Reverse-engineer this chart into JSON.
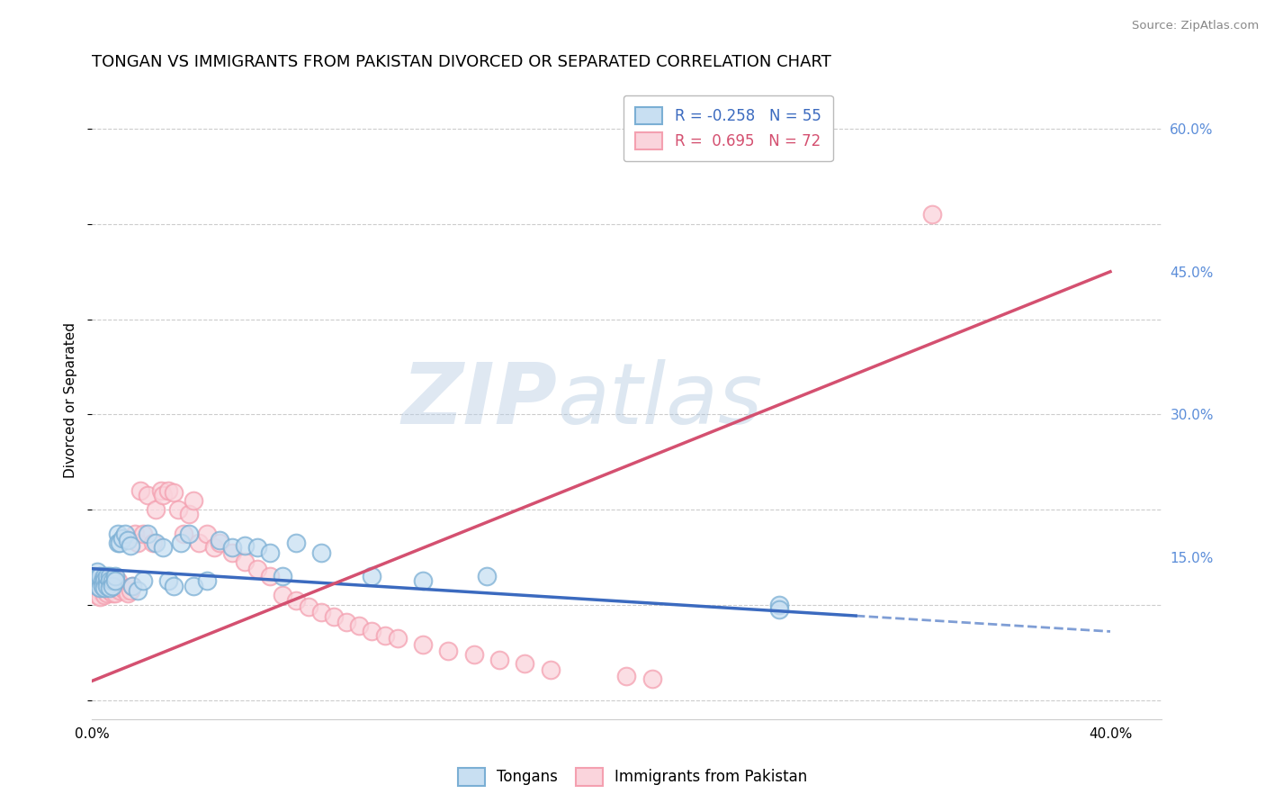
{
  "title": "TONGAN VS IMMIGRANTS FROM PAKISTAN DIVORCED OR SEPARATED CORRELATION CHART",
  "source": "Source: ZipAtlas.com",
  "ylabel": "Divorced or Separated",
  "xlim": [
    0.0,
    0.42
  ],
  "ylim": [
    -0.02,
    0.65
  ],
  "ytick_right": [
    0.15,
    0.3,
    0.45,
    0.6
  ],
  "ytick_right_labels": [
    "15.0%",
    "30.0%",
    "45.0%",
    "60.0%"
  ],
  "blue_R": -0.258,
  "blue_N": 55,
  "pink_R": 0.695,
  "pink_N": 72,
  "blue_edge_color": "#7bafd4",
  "pink_edge_color": "#f4a0b0",
  "blue_fill_color": "#c8dff2",
  "pink_fill_color": "#fad4dc",
  "blue_line_color": "#3b6abf",
  "pink_line_color": "#d45070",
  "blue_line_solid_end": 0.3,
  "blue_line_x0": 0.0,
  "blue_line_y0": 0.138,
  "blue_line_x1": 0.4,
  "blue_line_y1": 0.072,
  "pink_line_x0": 0.0,
  "pink_line_y0": 0.02,
  "pink_line_x1": 0.4,
  "pink_line_y1": 0.45,
  "watermark_zip": "ZIP",
  "watermark_atlas": "atlas",
  "background_color": "#ffffff",
  "grid_color": "#cccccc",
  "blue_points_x": [
    0.001,
    0.001,
    0.002,
    0.002,
    0.002,
    0.003,
    0.003,
    0.003,
    0.004,
    0.004,
    0.005,
    0.005,
    0.005,
    0.006,
    0.006,
    0.006,
    0.007,
    0.007,
    0.007,
    0.008,
    0.008,
    0.009,
    0.009,
    0.01,
    0.01,
    0.011,
    0.012,
    0.013,
    0.014,
    0.015,
    0.016,
    0.018,
    0.02,
    0.022,
    0.025,
    0.028,
    0.03,
    0.032,
    0.035,
    0.038,
    0.04,
    0.045,
    0.05,
    0.055,
    0.06,
    0.065,
    0.07,
    0.075,
    0.08,
    0.09,
    0.11,
    0.13,
    0.155,
    0.27,
    0.27
  ],
  "blue_points_y": [
    0.13,
    0.125,
    0.135,
    0.128,
    0.12,
    0.125,
    0.118,
    0.13,
    0.125,
    0.12,
    0.13,
    0.125,
    0.118,
    0.125,
    0.12,
    0.13,
    0.13,
    0.125,
    0.118,
    0.125,
    0.12,
    0.13,
    0.125,
    0.175,
    0.165,
    0.165,
    0.17,
    0.175,
    0.168,
    0.162,
    0.12,
    0.115,
    0.125,
    0.175,
    0.165,
    0.16,
    0.125,
    0.12,
    0.165,
    0.175,
    0.12,
    0.125,
    0.168,
    0.16,
    0.162,
    0.16,
    0.155,
    0.13,
    0.165,
    0.155,
    0.13,
    0.125,
    0.13,
    0.1,
    0.095
  ],
  "pink_points_x": [
    0.001,
    0.001,
    0.002,
    0.002,
    0.002,
    0.003,
    0.003,
    0.003,
    0.004,
    0.004,
    0.005,
    0.005,
    0.005,
    0.006,
    0.006,
    0.006,
    0.007,
    0.007,
    0.008,
    0.008,
    0.009,
    0.009,
    0.01,
    0.01,
    0.011,
    0.012,
    0.013,
    0.014,
    0.015,
    0.016,
    0.017,
    0.018,
    0.019,
    0.02,
    0.022,
    0.024,
    0.025,
    0.027,
    0.028,
    0.03,
    0.032,
    0.034,
    0.036,
    0.038,
    0.04,
    0.042,
    0.045,
    0.048,
    0.05,
    0.055,
    0.06,
    0.065,
    0.07,
    0.075,
    0.08,
    0.085,
    0.09,
    0.095,
    0.1,
    0.105,
    0.11,
    0.115,
    0.12,
    0.13,
    0.14,
    0.15,
    0.16,
    0.17,
    0.18,
    0.21,
    0.22,
    0.33
  ],
  "pink_points_y": [
    0.12,
    0.115,
    0.125,
    0.118,
    0.11,
    0.12,
    0.115,
    0.108,
    0.12,
    0.115,
    0.125,
    0.118,
    0.11,
    0.118,
    0.112,
    0.12,
    0.118,
    0.115,
    0.118,
    0.112,
    0.118,
    0.112,
    0.118,
    0.125,
    0.115,
    0.118,
    0.115,
    0.112,
    0.115,
    0.12,
    0.175,
    0.165,
    0.22,
    0.175,
    0.215,
    0.165,
    0.2,
    0.22,
    0.215,
    0.22,
    0.218,
    0.2,
    0.175,
    0.195,
    0.21,
    0.165,
    0.175,
    0.16,
    0.165,
    0.155,
    0.145,
    0.138,
    0.13,
    0.11,
    0.105,
    0.098,
    0.092,
    0.088,
    0.082,
    0.078,
    0.072,
    0.068,
    0.065,
    0.058,
    0.052,
    0.048,
    0.042,
    0.038,
    0.032,
    0.025,
    0.022,
    0.51
  ]
}
